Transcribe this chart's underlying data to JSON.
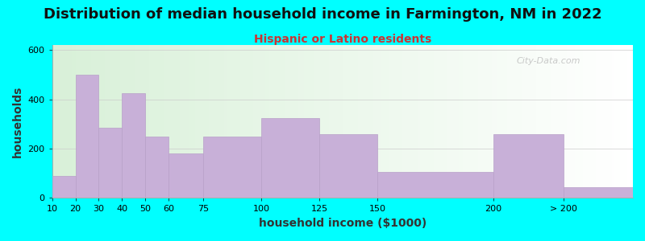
{
  "title": "Distribution of median household income in Farmington, NM in 2022",
  "subtitle": "Hispanic or Latino residents",
  "xlabel": "household income ($1000)",
  "ylabel": "households",
  "background_outer": "#00FFFF",
  "bar_color": "#c8b0d8",
  "bar_edge_color": "#b8a0c8",
  "watermark": "City-Data.com",
  "categories": [
    "10",
    "20",
    "30",
    "40",
    "50",
    "60",
    "75",
    "100",
    "125",
    "150",
    "200",
    "> 200"
  ],
  "values": [
    90,
    500,
    285,
    425,
    250,
    180,
    250,
    325,
    260,
    105,
    258,
    45
  ],
  "bar_lefts": [
    10,
    20,
    30,
    40,
    50,
    60,
    75,
    100,
    125,
    150,
    200,
    230
  ],
  "bar_rights": [
    20,
    30,
    40,
    50,
    60,
    75,
    100,
    125,
    150,
    200,
    230,
    260
  ],
  "xlim": [
    10,
    260
  ],
  "xtick_positions": [
    10,
    20,
    30,
    40,
    50,
    60,
    75,
    100,
    125,
    150,
    200,
    230
  ],
  "xtick_labels": [
    "10",
    "20",
    "30",
    "40",
    "50",
    "60",
    "75",
    "100",
    "125",
    "150",
    "200",
    "> 200"
  ],
  "ylim": [
    0,
    620
  ],
  "yticks": [
    0,
    200,
    400,
    600
  ],
  "title_fontsize": 13,
  "subtitle_fontsize": 10,
  "subtitle_color": "#cc3333",
  "axis_label_fontsize": 10,
  "tick_fontsize": 8
}
